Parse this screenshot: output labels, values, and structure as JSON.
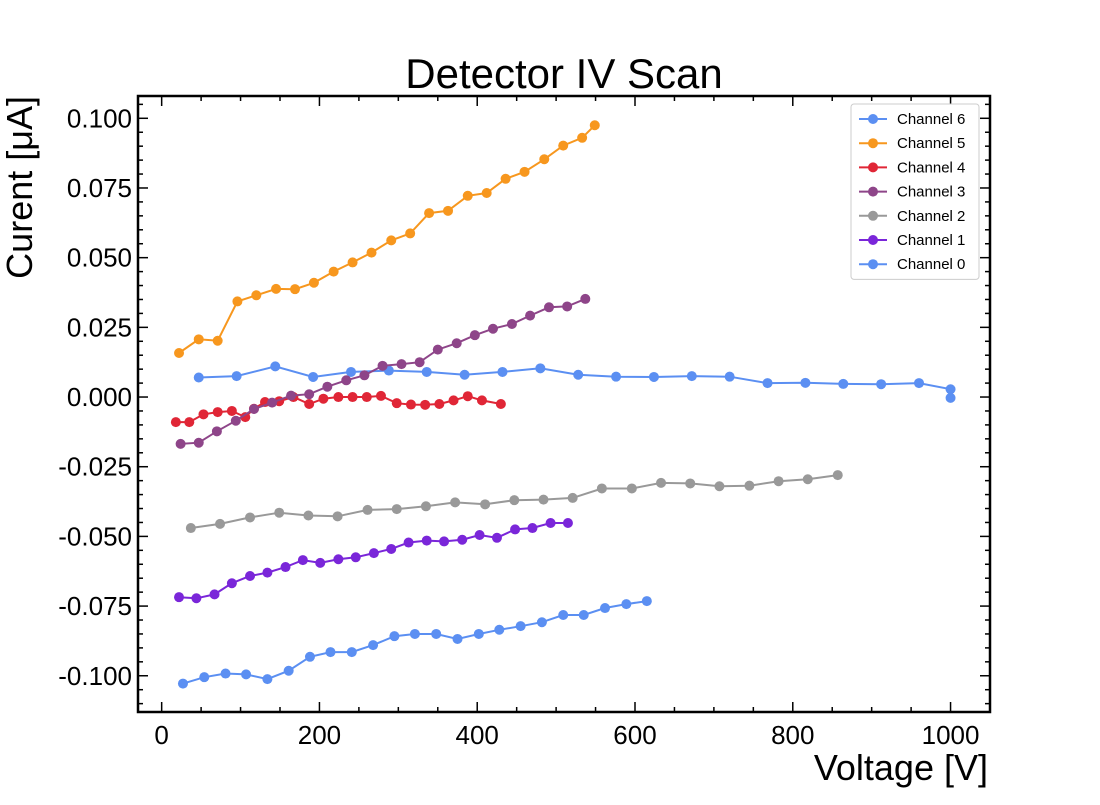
{
  "chart_data": {
    "type": "line",
    "title": "Detector IV Scan",
    "xlabel": "Voltage [V]",
    "ylabel": "Curent [μA]",
    "xlim": [
      -30,
      1050
    ],
    "ylim": [
      -0.113,
      0.108
    ],
    "xticks": [
      0,
      200,
      400,
      600,
      800,
      1000
    ],
    "xtick_labels": [
      "0",
      "200",
      "400",
      "600",
      "800",
      "1000"
    ],
    "yticks": [
      -0.1,
      -0.075,
      -0.05,
      -0.025,
      0.0,
      0.025,
      0.05,
      0.075,
      0.1
    ],
    "ytick_labels": [
      "-0.100",
      "-0.075",
      "-0.050",
      "-0.025",
      "0.000",
      "0.025",
      "0.050",
      "0.075",
      "0.100"
    ],
    "grid": false,
    "legend_position": "top-right",
    "series": [
      {
        "name": "Channel 6",
        "color": "#5b8ff2",
        "x": [
          47,
          95,
          144,
          192,
          240,
          288,
          336,
          384,
          432,
          480,
          528,
          576,
          624,
          672,
          720,
          768,
          816,
          864,
          912,
          960,
          1000,
          1000
        ],
        "y": [
          0.007,
          0.0075,
          0.011,
          0.0072,
          0.009,
          0.0095,
          0.009,
          0.008,
          0.009,
          0.0103,
          0.008,
          0.0073,
          0.0072,
          0.0075,
          0.0073,
          0.005,
          0.0051,
          0.0047,
          0.0046,
          0.005,
          0.0028,
          -0.0003
        ]
      },
      {
        "name": "Channel 5",
        "color": "#f7971e",
        "x": [
          22,
          47,
          71,
          96,
          120,
          145,
          169,
          193,
          218,
          242,
          266,
          291,
          315,
          339,
          363,
          388,
          412,
          436,
          460,
          485,
          509,
          533,
          549
        ],
        "y": [
          0.0158,
          0.0207,
          0.0202,
          0.0343,
          0.0365,
          0.0388,
          0.0387,
          0.041,
          0.045,
          0.0483,
          0.0518,
          0.0562,
          0.0587,
          0.066,
          0.0668,
          0.0722,
          0.0732,
          0.0783,
          0.0808,
          0.0853,
          0.0902,
          0.093,
          0.0975
        ]
      },
      {
        "name": "Channel 4",
        "color": "#e02636",
        "x": [
          18,
          35,
          53,
          71,
          89,
          106,
          117,
          131,
          149,
          167,
          187,
          205,
          224,
          242,
          260,
          278,
          298,
          316,
          334,
          352,
          370,
          388,
          406,
          430
        ],
        "y": [
          -0.009,
          -0.009,
          -0.0062,
          -0.0054,
          -0.005,
          -0.0072,
          -0.0042,
          -0.0018,
          -0.0015,
          0.0,
          -0.0025,
          -0.0006,
          0.0,
          0.0,
          0.0,
          0.0004,
          -0.0022,
          -0.0027,
          -0.0028,
          -0.0025,
          -0.0012,
          0.0003,
          -0.0012,
          -0.0025
        ]
      },
      {
        "name": "Channel 3",
        "color": "#8e4589",
        "x": [
          24,
          47,
          70,
          94,
          117,
          140,
          164,
          187,
          210,
          234,
          257,
          280,
          304,
          327,
          350,
          374,
          397,
          420,
          444,
          467,
          491,
          514,
          537
        ],
        "y": [
          -0.0168,
          -0.0164,
          -0.0123,
          -0.0085,
          -0.0043,
          -0.002,
          0.0005,
          0.001,
          0.0037,
          0.006,
          0.0078,
          0.0112,
          0.0118,
          0.0125,
          0.017,
          0.0193,
          0.0222,
          0.0245,
          0.0262,
          0.0292,
          0.0322,
          0.0325,
          0.0352
        ]
      },
      {
        "name": "Channel 2",
        "color": "#999999",
        "x": [
          37,
          74,
          112,
          149,
          186,
          223,
          261,
          298,
          335,
          372,
          410,
          447,
          484,
          521,
          558,
          596,
          633,
          670,
          707,
          745,
          782,
          819,
          857
        ],
        "y": [
          -0.047,
          -0.0455,
          -0.0432,
          -0.0415,
          -0.0425,
          -0.0428,
          -0.0405,
          -0.0402,
          -0.0392,
          -0.0378,
          -0.0385,
          -0.037,
          -0.0368,
          -0.0362,
          -0.0328,
          -0.0328,
          -0.0308,
          -0.031,
          -0.032,
          -0.0318,
          -0.0302,
          -0.0295,
          -0.028
        ]
      },
      {
        "name": "Channel 1",
        "color": "#7a26d9",
        "x": [
          22,
          44,
          67,
          89,
          112,
          134,
          157,
          179,
          201,
          224,
          246,
          269,
          291,
          313,
          336,
          358,
          381,
          403,
          425,
          448,
          470,
          493,
          515
        ],
        "y": [
          -0.0718,
          -0.0722,
          -0.0708,
          -0.0668,
          -0.0642,
          -0.063,
          -0.061,
          -0.0585,
          -0.0595,
          -0.0582,
          -0.0575,
          -0.056,
          -0.0545,
          -0.0522,
          -0.0515,
          -0.0518,
          -0.0512,
          -0.0495,
          -0.0505,
          -0.0475,
          -0.047,
          -0.0452,
          -0.0452
        ]
      },
      {
        "name": "Channel 0",
        "color": "#5b8ff2",
        "x": [
          27,
          54,
          81,
          107,
          134,
          161,
          188,
          214,
          241,
          268,
          295,
          321,
          348,
          375,
          402,
          428,
          455,
          482,
          509,
          535,
          562,
          589,
          615
        ],
        "y": [
          -0.1028,
          -0.1005,
          -0.0992,
          -0.0995,
          -0.1012,
          -0.0982,
          -0.0932,
          -0.0915,
          -0.0915,
          -0.089,
          -0.0858,
          -0.085,
          -0.085,
          -0.0868,
          -0.085,
          -0.0835,
          -0.0822,
          -0.0808,
          -0.0782,
          -0.0782,
          -0.0757,
          -0.0743,
          -0.0732
        ]
      }
    ]
  }
}
